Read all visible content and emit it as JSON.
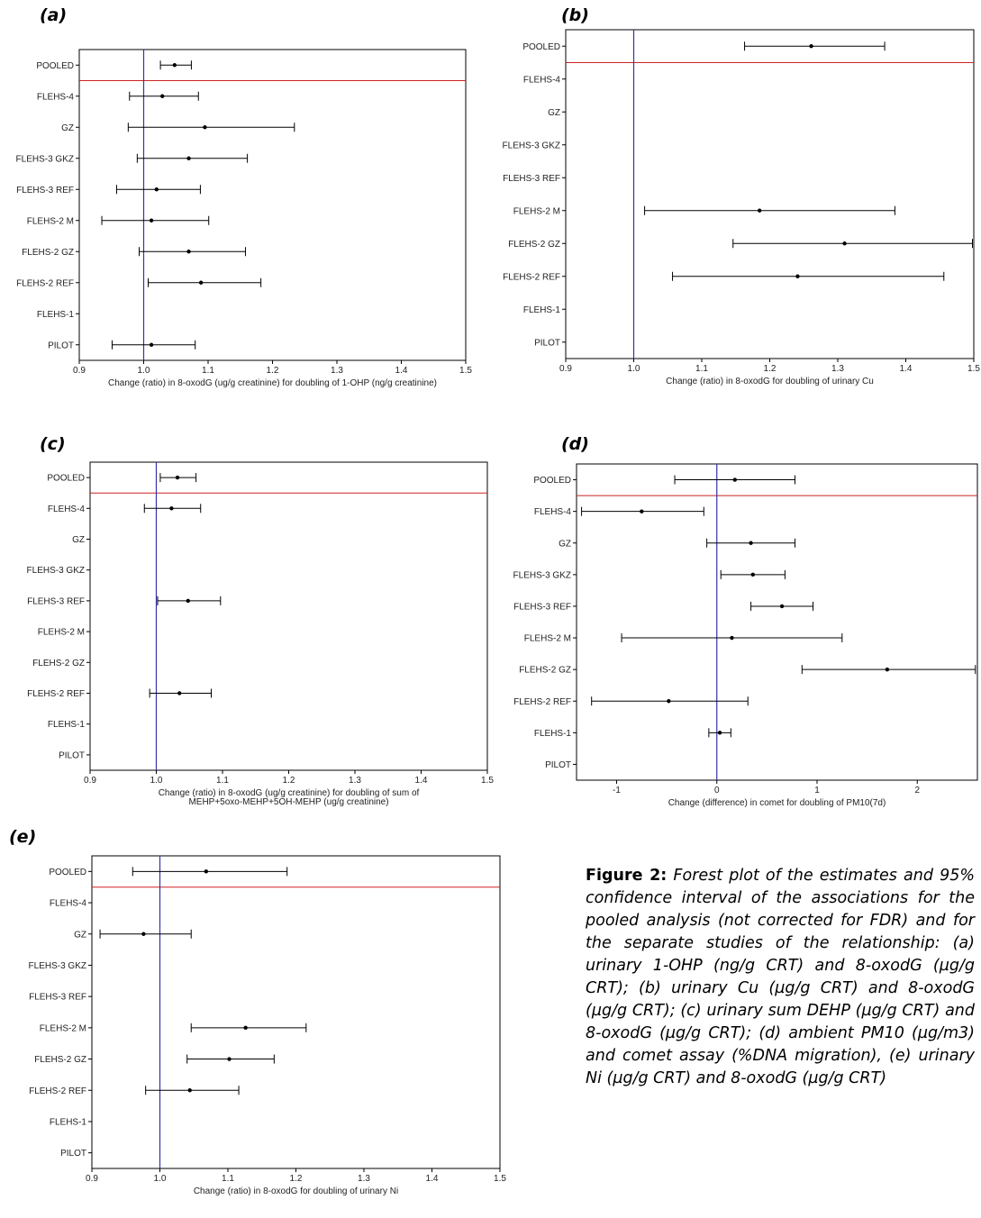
{
  "caption": {
    "label": "Figure 2:",
    "text": "Forest plot of the estimates and 95% confidence interval of the associations for the pooled analysis (not corrected for FDR) and for the separate studies of the relationship: (a) urinary 1-OHP (ng/g CRT) and 8-oxodG (µg/g CRT); (b) urinary Cu (µg/g CRT) and 8-oxodG (µg/g CRT); (c) urinary sum DEHP (µg/g CRT) and 8-oxodG (µg/g CRT); (d) ambient PM10 (µg/m3) and comet assay (%DNA migration), (e) urinary Ni (µg/g CRT) and 8-oxodG (µg/g CRT)"
  },
  "colors": {
    "reference_line": "#3333aa",
    "pooled_separator": "#cc2222",
    "marks": "#000000"
  },
  "chart_data": [
    {
      "panel": "(a)",
      "type": "forest",
      "xlabel": [
        "Change (ratio) in 8-oxodG (ug/g creatinine) for doubling of 1-OHP (ng/g creatinine)"
      ],
      "xlim": [
        0.9,
        1.5
      ],
      "xticks": [
        0.9,
        1.0,
        1.1,
        1.2,
        1.3,
        1.4,
        1.5
      ],
      "xtick_labels": [
        "0.9",
        "1.0",
        "1.1",
        "1.2",
        "1.3",
        "1.4",
        "1.5"
      ],
      "reference": 1.0,
      "categories": [
        "POOLED",
        "FLEHS-4",
        "GZ",
        "FLEHS-3 GKZ",
        "FLEHS-3 REF",
        "FLEHS-2 M",
        "FLEHS-2 GZ",
        "FLEHS-2 REF",
        "FLEHS-1",
        "PILOT"
      ],
      "estimates": [
        1.048,
        1.029,
        1.095,
        1.07,
        1.02,
        1.012,
        1.07,
        1.089,
        null,
        1.012
      ],
      "lower": [
        1.026,
        0.978,
        0.976,
        0.99,
        0.958,
        0.935,
        0.993,
        1.007,
        null,
        0.951
      ],
      "upper": [
        1.074,
        1.085,
        1.234,
        1.161,
        1.088,
        1.101,
        1.158,
        1.182,
        null,
        1.08
      ]
    },
    {
      "panel": "(b)",
      "type": "forest",
      "xlabel": [
        "Change (ratio) in 8-oxodG for doubling of urinary Cu"
      ],
      "xlim": [
        0.9,
        1.5
      ],
      "xticks": [
        0.9,
        1.0,
        1.1,
        1.2,
        1.3,
        1.4,
        1.5
      ],
      "xtick_labels": [
        "0.9",
        "1.0",
        "1.1",
        "1.2",
        "1.3",
        "1.4",
        "1.5"
      ],
      "reference": 1.0,
      "categories": [
        "POOLED",
        "FLEHS-4",
        "GZ",
        "FLEHS-3 GKZ",
        "FLEHS-3 REF",
        "FLEHS-2 M",
        "FLEHS-2 GZ",
        "FLEHS-2 REF",
        "FLEHS-1",
        "PILOT"
      ],
      "estimates": [
        1.261,
        null,
        null,
        null,
        null,
        1.185,
        1.31,
        1.241,
        null,
        null
      ],
      "lower": [
        1.163,
        null,
        null,
        null,
        null,
        1.016,
        1.146,
        1.057,
        null,
        null
      ],
      "upper": [
        1.369,
        null,
        null,
        null,
        null,
        1.384,
        1.498,
        1.456,
        null,
        null
      ]
    },
    {
      "panel": "(c)",
      "type": "forest",
      "xlabel": [
        "Change (ratio) in 8-oxodG (ug/g creatinine) for doubling of sum of",
        "MEHP+5oxo-MEHP+5OH-MEHP (ug/g creatinine)"
      ],
      "xlim": [
        0.9,
        1.5
      ],
      "xticks": [
        0.9,
        1.0,
        1.1,
        1.2,
        1.3,
        1.4,
        1.5
      ],
      "xtick_labels": [
        "0.9",
        "1.0",
        "1.1",
        "1.2",
        "1.3",
        "1.4",
        "1.5"
      ],
      "reference": 1.0,
      "categories": [
        "POOLED",
        "FLEHS-4",
        "GZ",
        "FLEHS-3 GKZ",
        "FLEHS-3 REF",
        "FLEHS-2 M",
        "FLEHS-2 GZ",
        "FLEHS-2 REF",
        "FLEHS-1",
        "PILOT"
      ],
      "estimates": [
        1.032,
        1.023,
        null,
        null,
        1.048,
        null,
        null,
        1.035,
        null,
        null
      ],
      "lower": [
        1.006,
        0.982,
        null,
        null,
        1.002,
        null,
        null,
        0.99,
        null,
        null
      ],
      "upper": [
        1.06,
        1.067,
        null,
        null,
        1.097,
        null,
        null,
        1.083,
        null,
        null
      ]
    },
    {
      "panel": "(d)",
      "type": "forest",
      "xlabel": [
        "Change (difference) in comet for doubling of PM10(7d)"
      ],
      "xlim": [
        -1.4,
        2.6
      ],
      "xticks": [
        -1,
        0,
        1,
        2
      ],
      "xtick_labels": [
        "-1",
        "0",
        "1",
        "2"
      ],
      "reference": 0,
      "categories": [
        "POOLED",
        "FLEHS-4",
        "GZ",
        "FLEHS-3 GKZ",
        "FLEHS-3 REF",
        "FLEHS-2 M",
        "FLEHS-2 GZ",
        "FLEHS-2 REF",
        "FLEHS-1",
        "PILOT"
      ],
      "estimates": [
        0.18,
        -0.75,
        0.34,
        0.36,
        0.65,
        0.15,
        1.7,
        -0.48,
        0.03,
        null
      ],
      "lower": [
        -0.42,
        -1.35,
        -0.1,
        0.04,
        0.34,
        -0.95,
        0.85,
        -1.25,
        -0.08,
        null
      ],
      "upper": [
        0.78,
        -0.13,
        0.78,
        0.68,
        0.96,
        1.25,
        2.58,
        0.31,
        0.14,
        null
      ]
    },
    {
      "panel": "(e)",
      "type": "forest",
      "xlabel": [
        "Change (ratio) in 8-oxodG for doubling of urinary Ni"
      ],
      "xlim": [
        0.9,
        1.5
      ],
      "xticks": [
        0.9,
        1.0,
        1.1,
        1.2,
        1.3,
        1.4,
        1.5
      ],
      "xtick_labels": [
        "0.9",
        "1.0",
        "1.1",
        "1.2",
        "1.3",
        "1.4",
        "1.5"
      ],
      "reference": 1.0,
      "categories": [
        "POOLED",
        "FLEHS-4",
        "GZ",
        "FLEHS-3 GKZ",
        "FLEHS-3 REF",
        "FLEHS-2 M",
        "FLEHS-2 GZ",
        "FLEHS-2 REF",
        "FLEHS-1",
        "PILOT"
      ],
      "estimates": [
        1.068,
        null,
        0.976,
        null,
        null,
        1.126,
        1.102,
        1.044,
        null,
        null
      ],
      "lower": [
        0.96,
        null,
        0.912,
        null,
        null,
        1.046,
        1.04,
        0.979,
        null,
        null
      ],
      "upper": [
        1.187,
        null,
        1.046,
        null,
        null,
        1.215,
        1.168,
        1.116,
        null,
        null
      ]
    }
  ]
}
